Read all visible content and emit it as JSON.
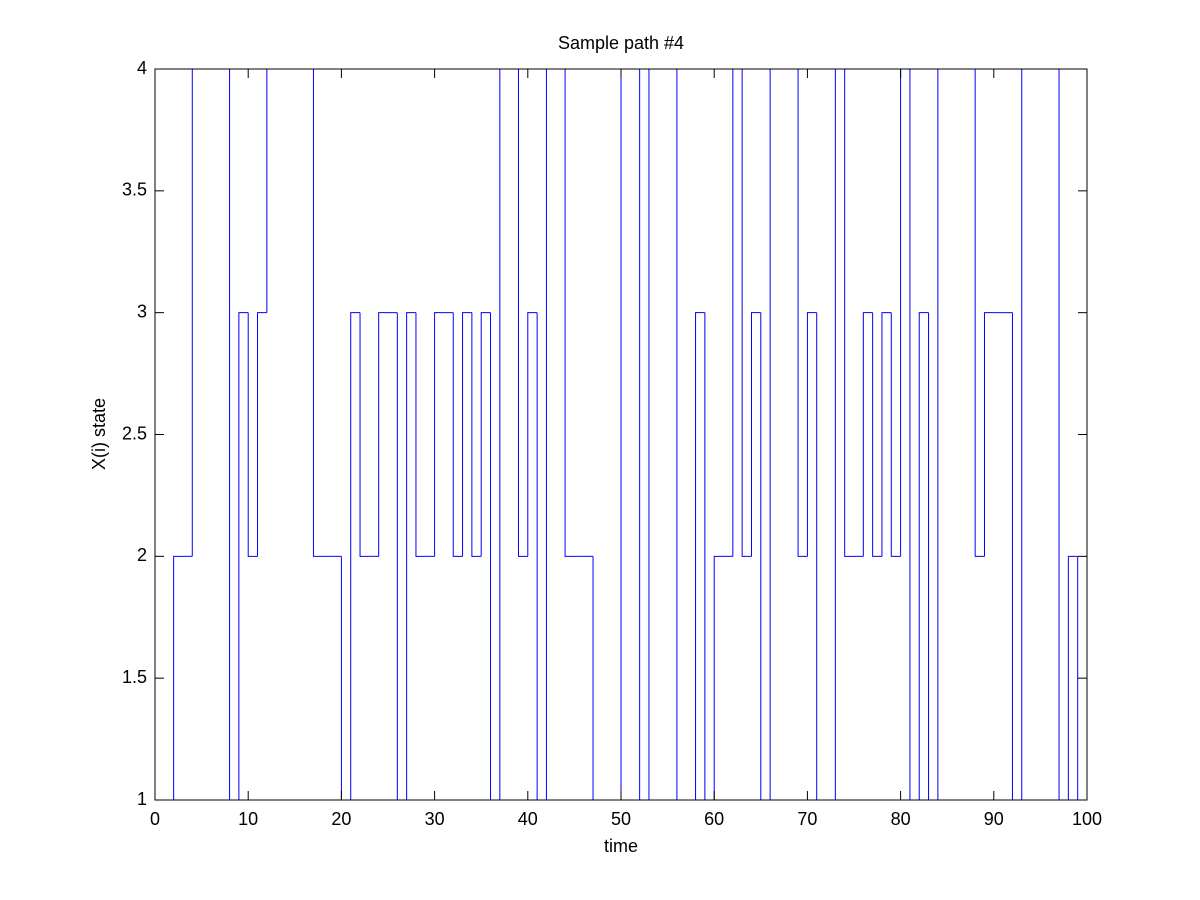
{
  "chart_data": {
    "type": "stairs",
    "title": "Sample path #4",
    "x_label": "time",
    "y_label": "X(i) state",
    "x": [
      0,
      1,
      2,
      3,
      4,
      5,
      6,
      7,
      8,
      9,
      10,
      11,
      12,
      13,
      14,
      15,
      16,
      17,
      18,
      19,
      20,
      21,
      22,
      23,
      24,
      25,
      26,
      27,
      28,
      29,
      30,
      31,
      32,
      33,
      34,
      35,
      36,
      37,
      38,
      39,
      40,
      41,
      42,
      43,
      44,
      45,
      46,
      47,
      48,
      49,
      50,
      51,
      52,
      53,
      54,
      55,
      56,
      57,
      58,
      59,
      60,
      61,
      62,
      63,
      64,
      65,
      66,
      67,
      68,
      69,
      70,
      71,
      72,
      73,
      74,
      75,
      76,
      77,
      78,
      79,
      80,
      81,
      82,
      83,
      84,
      85,
      86,
      87,
      88,
      89,
      90,
      91,
      92,
      93,
      94,
      95,
      96,
      97,
      98,
      99,
      100
    ],
    "values": [
      1,
      1,
      2,
      2,
      4,
      4,
      4,
      4,
      1,
      3,
      2,
      3,
      4,
      4,
      4,
      4,
      4,
      2,
      2,
      2,
      1,
      3,
      2,
      2,
      3,
      3,
      1,
      3,
      2,
      2,
      3,
      3,
      2,
      3,
      2,
      3,
      1,
      4,
      4,
      2,
      3,
      1,
      4,
      4,
      2,
      2,
      2,
      1,
      1,
      1,
      4,
      4,
      1,
      4,
      4,
      4,
      1,
      1,
      3,
      1,
      2,
      2,
      4,
      2,
      3,
      1,
      4,
      4,
      4,
      2,
      3,
      1,
      1,
      4,
      2,
      2,
      3,
      2,
      3,
      2,
      4,
      1,
      3,
      1,
      4,
      4,
      4,
      4,
      2,
      3,
      3,
      3,
      1,
      4,
      4,
      4,
      4,
      1,
      2,
      1,
      4
    ],
    "color": "#0000ff",
    "xlim": [
      0,
      100
    ],
    "xticks": [
      0,
      10,
      20,
      30,
      40,
      50,
      60,
      70,
      80,
      90,
      100
    ],
    "ylim": [
      1,
      4
    ],
    "yticks": [
      1,
      1.5,
      2,
      2.5,
      3,
      3.5,
      4
    ],
    "grid": false
  }
}
